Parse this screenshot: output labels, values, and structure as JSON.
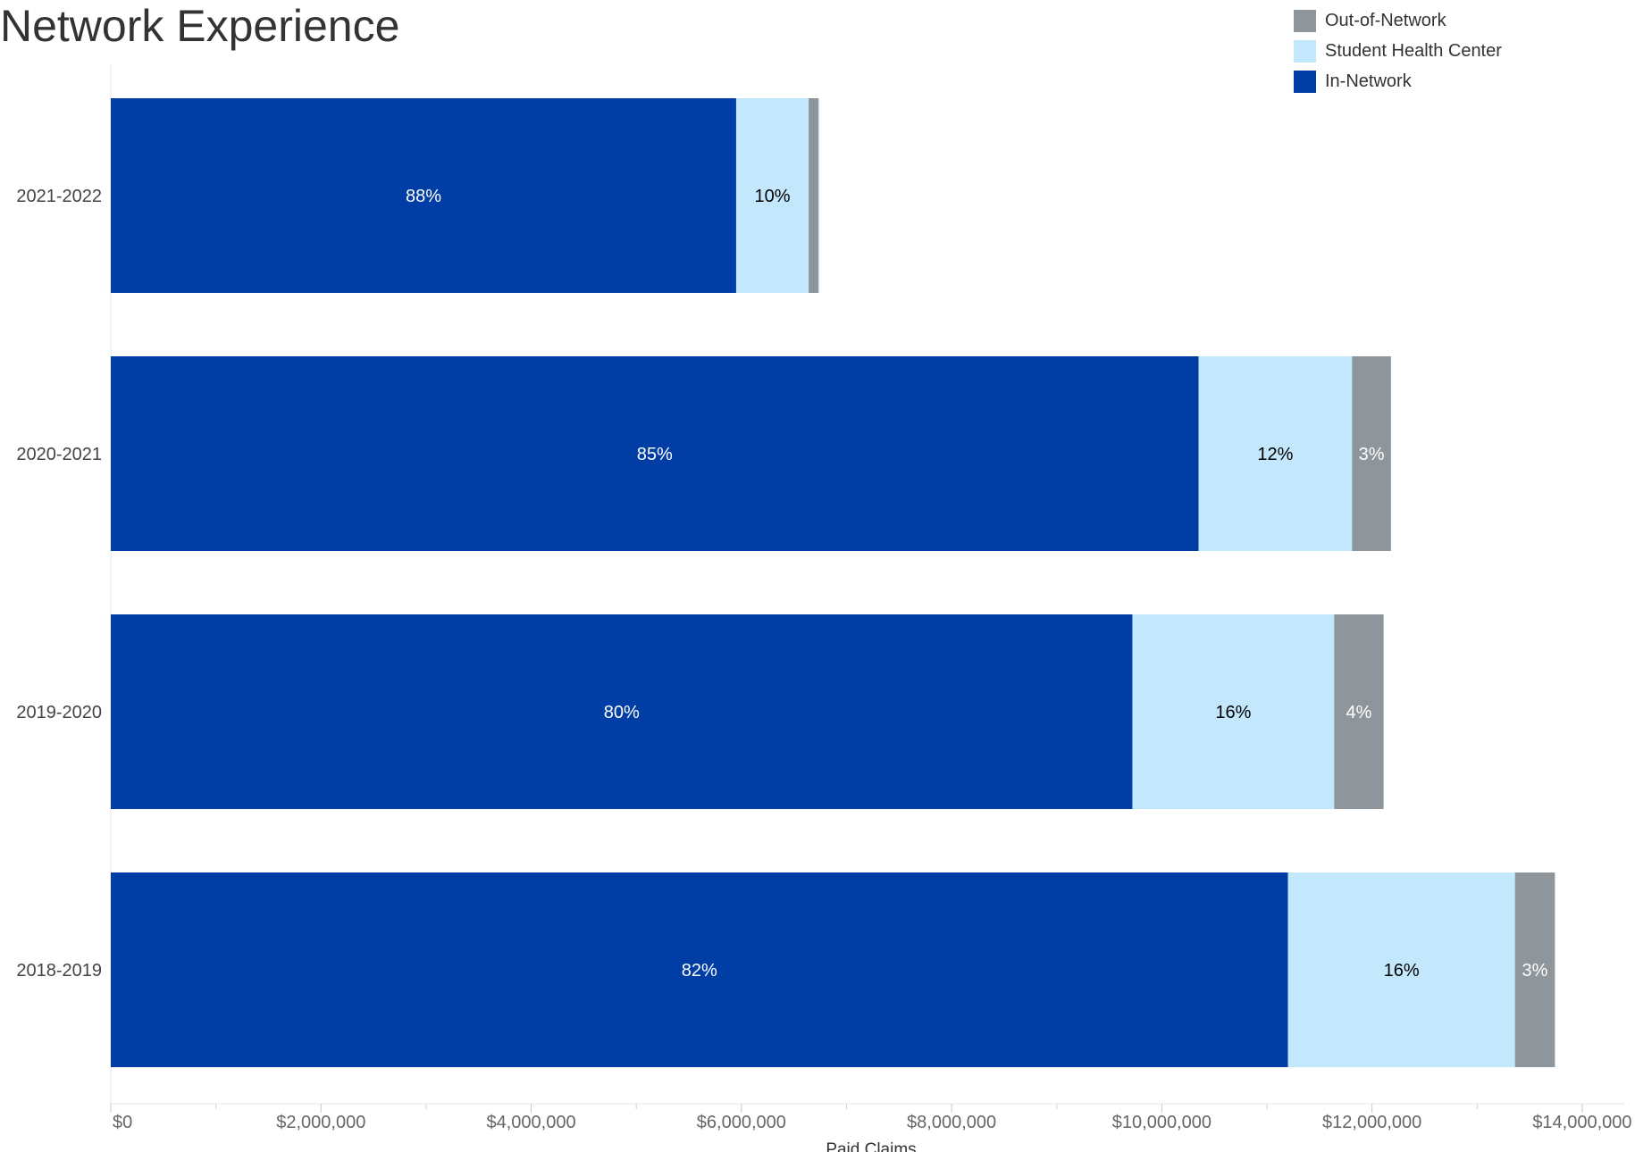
{
  "title": "Network Experience",
  "colors": {
    "in_network": "#003DA5",
    "student_health_center": "#C3E8FD",
    "out_of_network": "#8E969B"
  },
  "legend": [
    {
      "label": "Out-of-Network",
      "color": "#8E969B"
    },
    {
      "label": "Student Health Center",
      "color": "#C3E8FD"
    },
    {
      "label": "In-Network",
      "color": "#003DA5"
    }
  ],
  "chart_data": {
    "type": "bar",
    "orientation": "horizontal",
    "stacked": true,
    "title": "Network Experience",
    "xlabel": "Paid Claims",
    "ylabel": "",
    "categories": [
      "2021-2022",
      "2020-2021",
      "2019-2020",
      "2018-2019"
    ],
    "series": [
      {
        "name": "In-Network",
        "color": "#003DA5",
        "label_color": "#ffffff",
        "values": [
          5950000,
          10350000,
          9720000,
          11200000
        ],
        "labels": [
          "88%",
          "85%",
          "80%",
          "82%"
        ]
      },
      {
        "name": "Student Health Center",
        "color": "#C3E8FD",
        "label_color": "#000000",
        "values": [
          690000,
          1460000,
          1920000,
          2160000
        ],
        "labels": [
          "10%",
          "12%",
          "16%",
          "16%"
        ]
      },
      {
        "name": "Out-of-Network",
        "color": "#8E969B",
        "label_color": "#ffffff",
        "values": [
          95000,
          370000,
          470000,
          380000
        ],
        "labels": [
          "",
          "3%",
          "4%",
          "3%"
        ]
      }
    ],
    "xlim": [
      0,
      14400000
    ],
    "xticks": [
      0,
      2000000,
      4000000,
      6000000,
      8000000,
      10000000,
      12000000,
      14000000
    ],
    "xtick_labels": [
      "$0",
      "$2,000,000",
      "$4,000,000",
      "$6,000,000",
      "$8,000,000",
      "$10,000,000",
      "$12,000,000",
      "$14,000,000"
    ],
    "minor_ticks": [
      1000000,
      3000000,
      5000000,
      7000000,
      9000000,
      11000000,
      13000000
    ],
    "grid": false,
    "legend_position": "top-right"
  }
}
